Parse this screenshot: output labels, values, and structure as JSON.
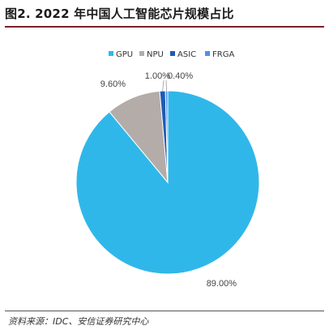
{
  "figure": {
    "title": "图2. 2022 年中国人工智能芯片规模占比",
    "source": "资料来源：IDC、安信证券研究中心"
  },
  "chart_data": {
    "type": "pie",
    "categories": [
      "GPU",
      "NPU",
      "ASIC",
      "FRGA"
    ],
    "values": [
      89.0,
      9.6,
      1.0,
      0.4
    ],
    "labels": [
      "89.00%",
      "9.60%",
      "1.00%",
      "0.40%"
    ],
    "colors": [
      "#30b7e9",
      "#b4aca9",
      "#1d5bb3",
      "#4f8ef0"
    ],
    "legend": "top-center"
  }
}
